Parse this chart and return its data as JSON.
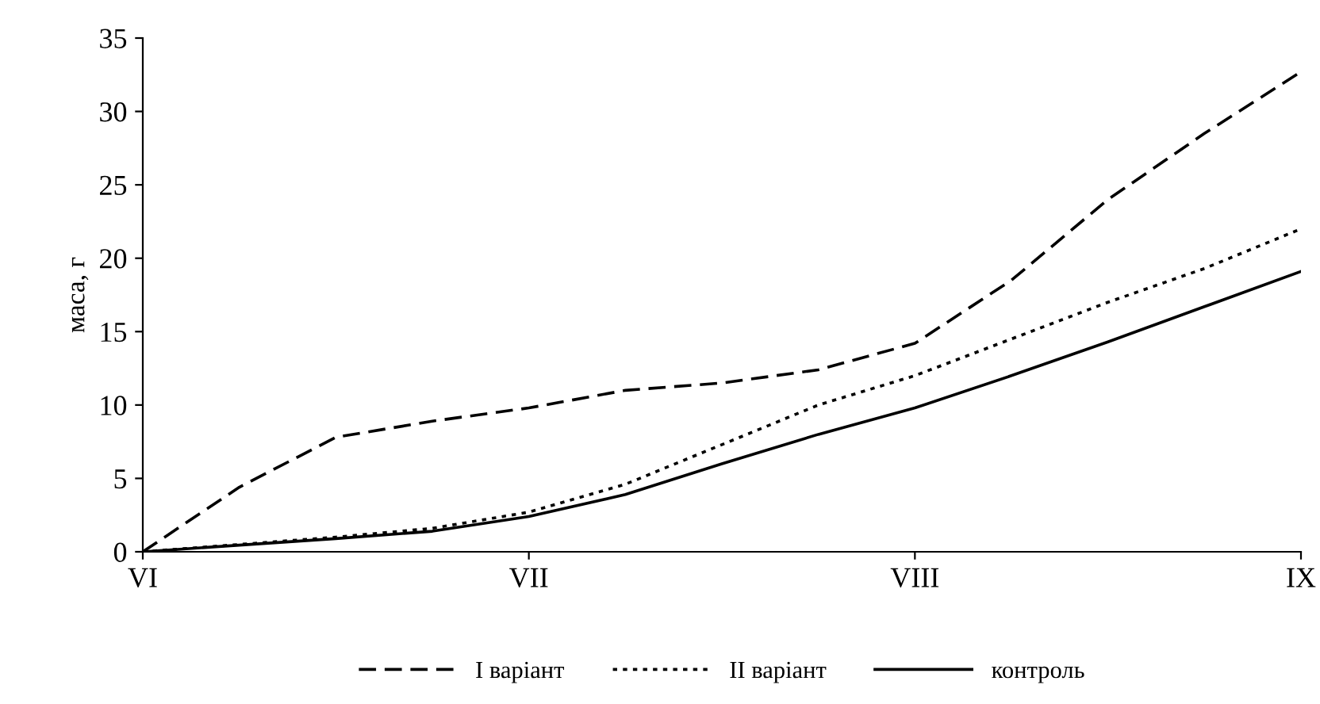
{
  "chart_data": {
    "type": "line",
    "ylabel": "маса, г",
    "categories": [
      "VI",
      null,
      null,
      null,
      "VII",
      null,
      null,
      null,
      "VIII",
      null,
      null,
      null,
      "IX"
    ],
    "ylim": [
      0,
      35
    ],
    "yticks": [
      0,
      5,
      10,
      15,
      20,
      25,
      30,
      35
    ],
    "grid": false,
    "legend": "bottom",
    "marker": "none",
    "series": [
      {
        "name": "I варіант",
        "color": "#000000",
        "line_style": "dashed",
        "values": [
          0,
          4.4,
          7.8,
          8.9,
          9.8,
          11.0,
          11.5,
          12.4,
          14.2,
          18.5,
          24,
          28.5,
          32.7
        ]
      },
      {
        "name": "II варіант",
        "color": "#000000",
        "line_style": "dotted",
        "values": [
          0,
          0.5,
          1.0,
          1.6,
          2.7,
          4.6,
          7.3,
          10,
          12,
          14.5,
          17,
          19.3,
          22
        ]
      },
      {
        "name": "контроль",
        "color": "#000000",
        "line_style": "solid",
        "values": [
          0,
          0.45,
          0.9,
          1.4,
          2.4,
          3.9,
          6.0,
          8.0,
          9.8,
          12,
          14.3,
          16.7,
          19.1
        ]
      }
    ]
  }
}
